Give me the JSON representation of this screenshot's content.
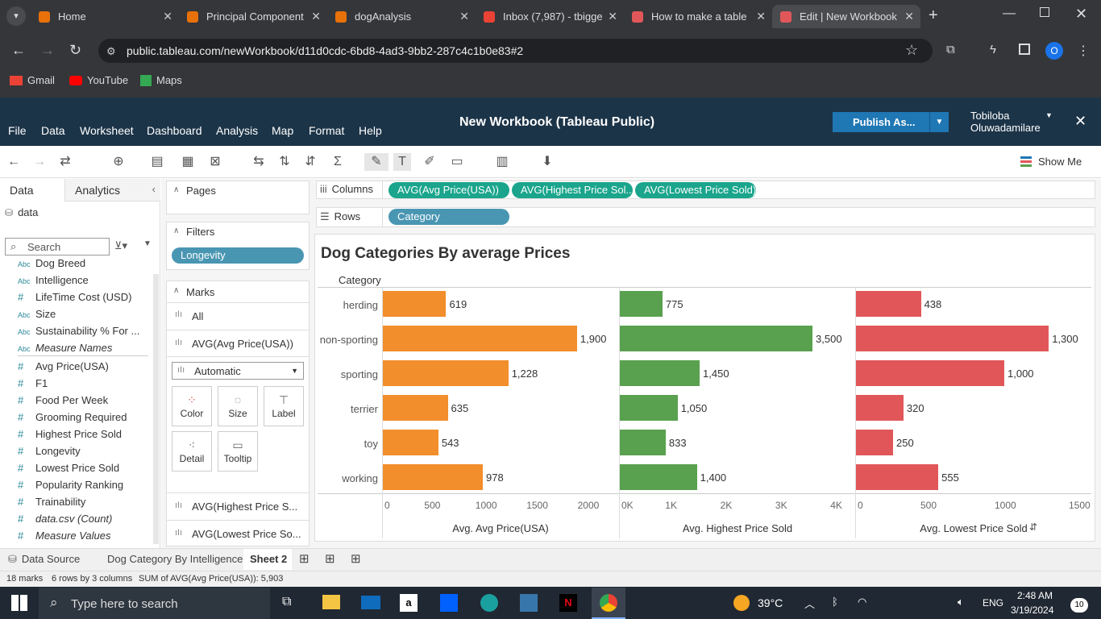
{
  "browser": {
    "tabs": [
      {
        "title": "Home",
        "color": "#e8710a"
      },
      {
        "title": "Principal Component",
        "color": "#e8710a"
      },
      {
        "title": "dogAnalysis",
        "color": "#e8710a"
      },
      {
        "title": "Inbox (7,987) - tbigge",
        "color": "#ea4335"
      },
      {
        "title": "How to make a table",
        "color": "#e15759"
      },
      {
        "title": "Edit | New Workbook",
        "color": "#e15759"
      }
    ],
    "url": "public.tableau.com/newWorkbook/d11d0cdc-6bd8-4ad3-9bb2-287c4c1b0e83#2",
    "profile_initial": "O",
    "bookmarks": [
      "Gmail",
      "YouTube",
      "Maps"
    ]
  },
  "app": {
    "title": "New Workbook (Tableau Public)",
    "menu": [
      "File",
      "Data",
      "Worksheet",
      "Dashboard",
      "Analysis",
      "Map",
      "Format",
      "Help"
    ],
    "publish_label": "Publish As...",
    "user_first": "Tobiloba",
    "user_last": "Oluwadamilare",
    "show_me": "Show Me"
  },
  "data_pane": {
    "tab_data": "Data",
    "tab_analytics": "Analytics",
    "source": "data",
    "search_placeholder": "Search",
    "dimensions": [
      {
        "type": "Abc",
        "name": "Dog Breed"
      },
      {
        "type": "Abc",
        "name": "Intelligence"
      },
      {
        "type": "#",
        "name": "LifeTime Cost (USD)"
      },
      {
        "type": "Abc",
        "name": "Size"
      },
      {
        "type": "Abc",
        "name": "Sustainability % For ..."
      },
      {
        "type": "Abc",
        "name": "Measure Names"
      }
    ],
    "measures": [
      {
        "type": "#",
        "name": "Avg Price(USA)"
      },
      {
        "type": "#",
        "name": "F1"
      },
      {
        "type": "#",
        "name": "Food Per Week"
      },
      {
        "type": "#",
        "name": "Grooming Required"
      },
      {
        "type": "#",
        "name": "Highest Price Sold"
      },
      {
        "type": "#",
        "name": "Longevity"
      },
      {
        "type": "#",
        "name": "Lowest Price Sold"
      },
      {
        "type": "#",
        "name": "Popularity Ranking"
      },
      {
        "type": "#",
        "name": "Trainability"
      },
      {
        "type": "#",
        "name": "data.csv (Count)"
      },
      {
        "type": "#",
        "name": "Measure Values"
      }
    ]
  },
  "cards": {
    "pages": "Pages",
    "filters": "Filters",
    "filter_pill": "Longevity",
    "marks": "Marks",
    "marks_all": "All",
    "marks_avg": "AVG(Avg Price(USA))",
    "mark_type": "Automatic",
    "btn_color": "Color",
    "btn_size": "Size",
    "btn_label": "Label",
    "btn_detail": "Detail",
    "btn_tooltip": "Tooltip",
    "marks_highest": "AVG(Highest Price S...",
    "marks_lowest": "AVG(Lowest Price So..."
  },
  "shelves": {
    "columns_label": "Columns",
    "rows_label": "Rows",
    "columns": [
      "AVG(Avg Price(USA))",
      "AVG(Highest Price Sol...",
      "AVG(Lowest Price Sold)"
    ],
    "rows": [
      "Category"
    ]
  },
  "chart_data": {
    "type": "bar",
    "title": "Dog Categories By average Prices",
    "row_header": "Category",
    "categories": [
      "herding",
      "non-sporting",
      "sporting",
      "terrier",
      "toy",
      "working"
    ],
    "series": [
      {
        "name": "Avg. Avg Price(USA)",
        "color": "#f28e2b",
        "values": [
          619,
          1900,
          1228,
          635,
          543,
          978
        ],
        "labels": [
          "619",
          "1,900",
          "1,228",
          "635",
          "543",
          "978"
        ],
        "ticks": [
          "0",
          "500",
          "1000",
          "1500",
          "2000"
        ],
        "max": 2400
      },
      {
        "name": "Avg. Highest Price Sold",
        "color": "#59a14f",
        "values": [
          775,
          3500,
          1450,
          1050,
          833,
          1400
        ],
        "labels": [
          "775",
          "3,500",
          "1,450",
          "1,050",
          "833",
          "1,400"
        ],
        "ticks": [
          "0K",
          "1K",
          "2K",
          "3K",
          "4K"
        ],
        "max": 4300
      },
      {
        "name": "Avg. Lowest Price Sold",
        "color": "#e15759",
        "values": [
          438,
          1300,
          1000,
          320,
          250,
          555
        ],
        "labels": [
          "438",
          "1,300",
          "1,000",
          "320",
          "250",
          "555"
        ],
        "ticks": [
          "0",
          "500",
          "1000",
          "1500"
        ],
        "max": 1600
      }
    ]
  },
  "sheet_tabs": {
    "data_source": "Data Source",
    "sheet1": "Dog Category By Intelligence",
    "sheet2": "Sheet 2"
  },
  "status": {
    "marks": "18 marks",
    "dims": "6 rows by 3 columns",
    "sum": "SUM of AVG(Avg Price(USA)): 5,903"
  },
  "taskbar": {
    "search_placeholder": "Type here to search",
    "weather": "39°C",
    "lang": "ENG",
    "time": "2:48 AM",
    "date": "3/19/2024",
    "notif": "10"
  }
}
